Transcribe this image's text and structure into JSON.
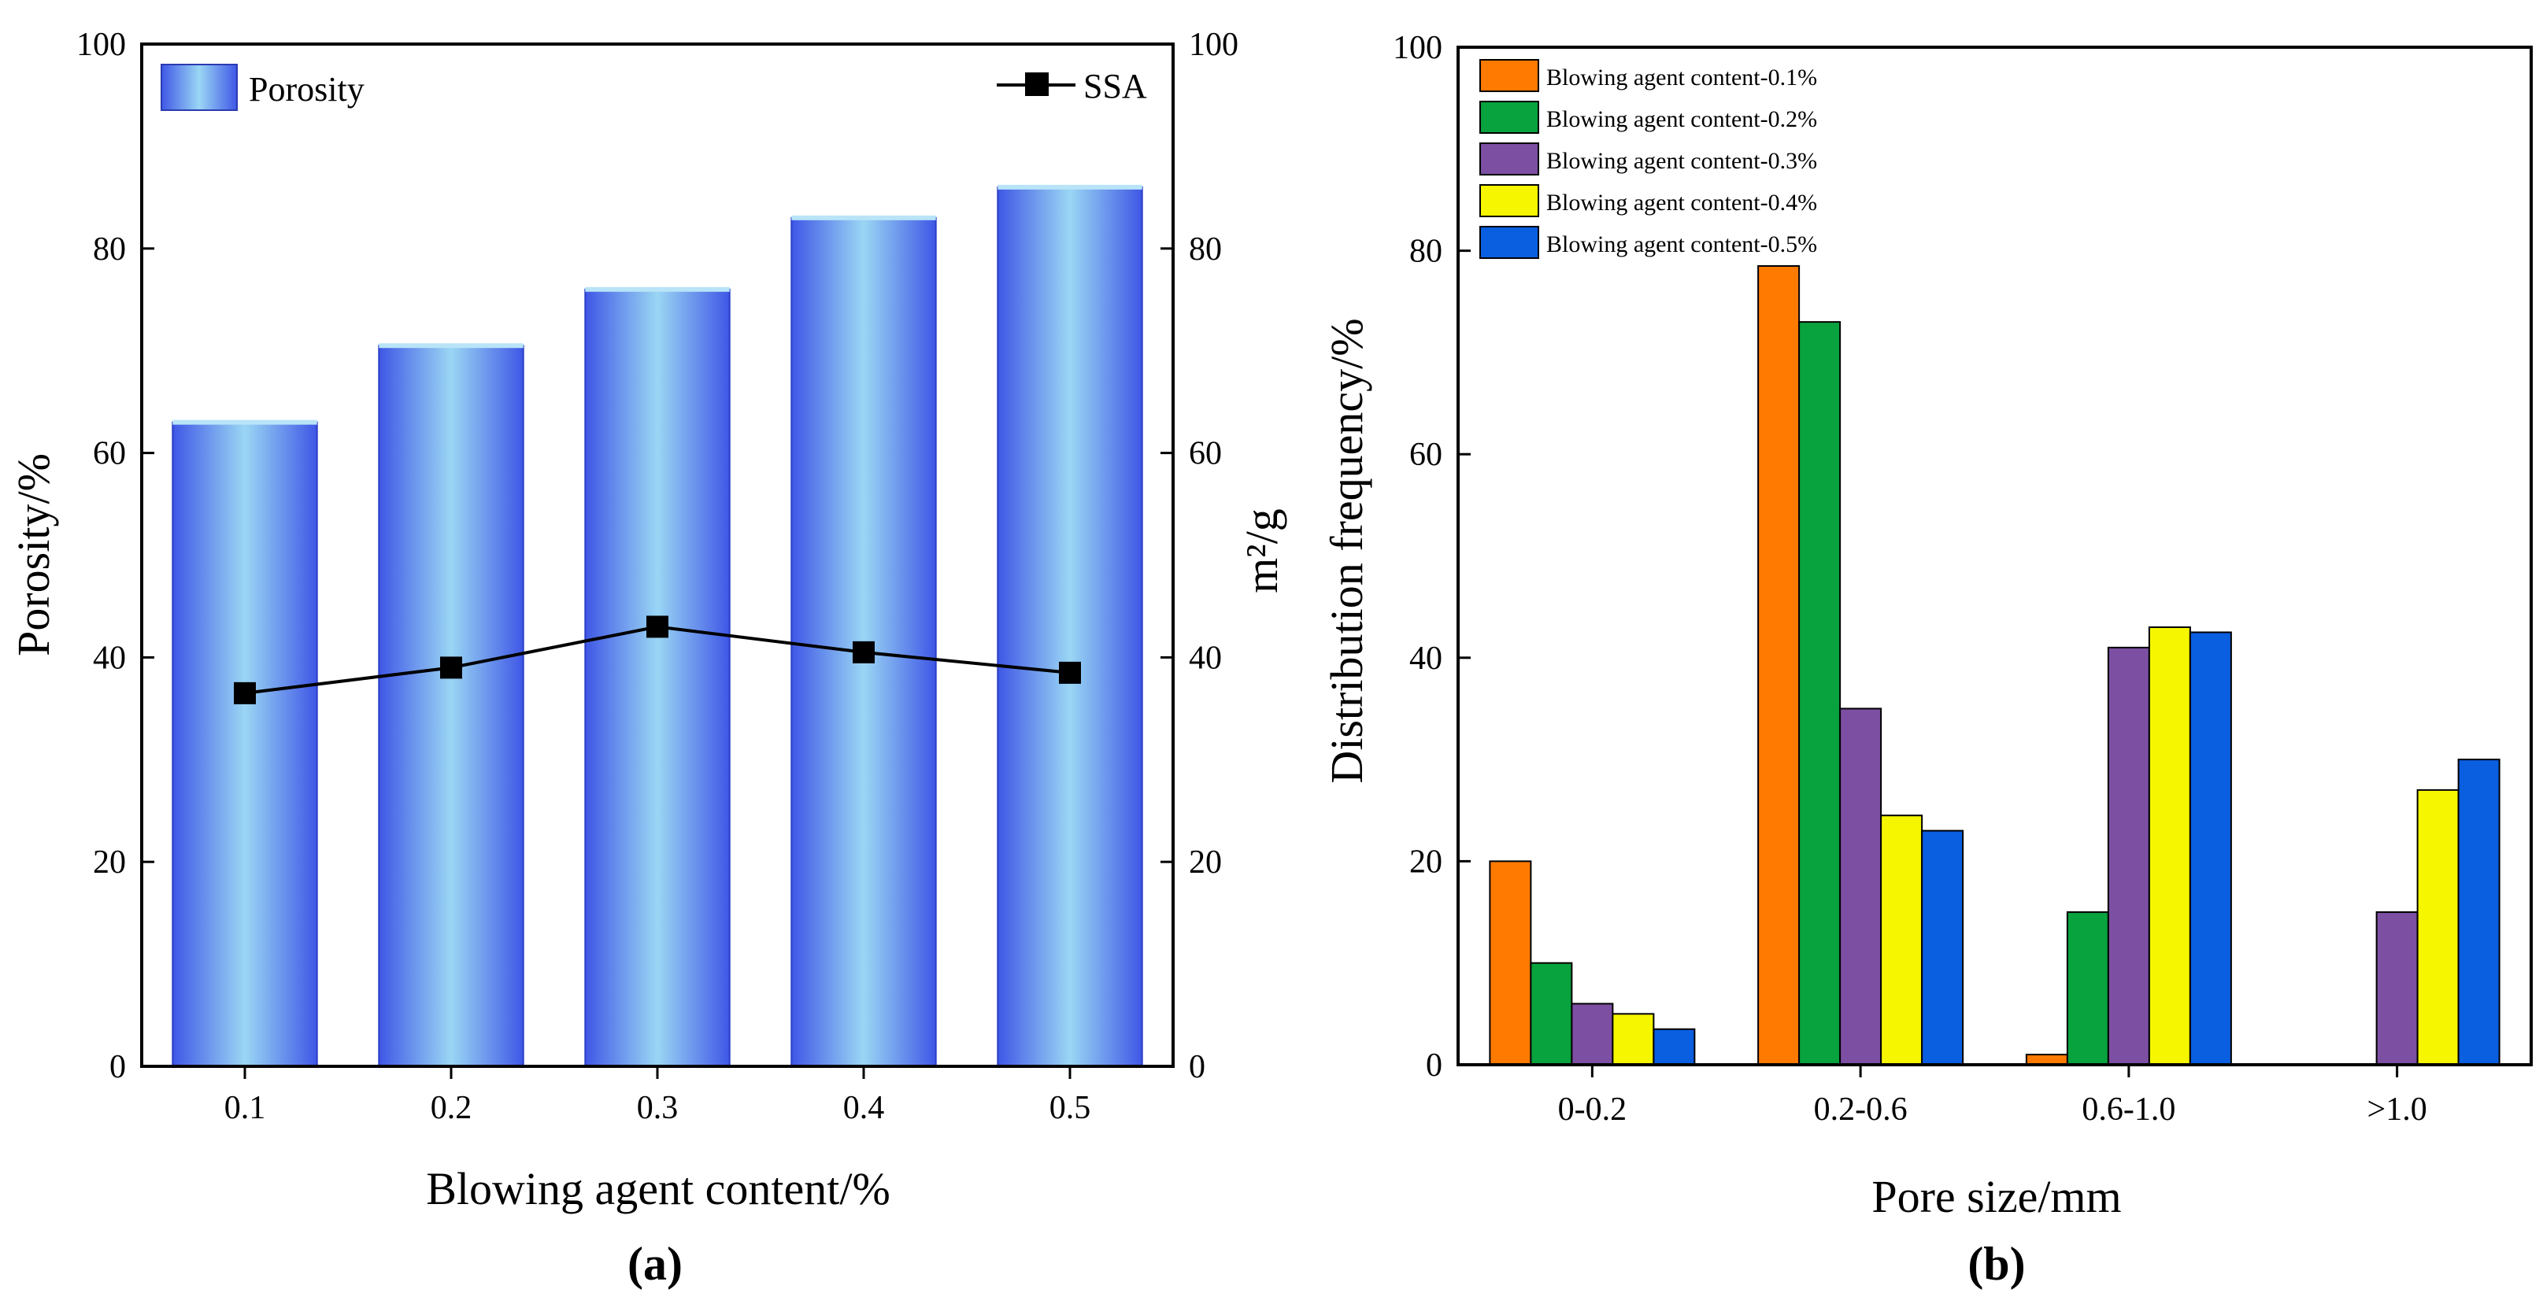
{
  "colors": {
    "bar_a_edge": "#3f57e6",
    "bar_a_center": "#9ad6f4",
    "ssa_line": "#000000",
    "b_series": [
      "#ff7a00",
      "#08a23e",
      "#7c4fa3",
      "#f6f600",
      "#0a5ee0"
    ]
  },
  "chart_data": [
    {
      "type": "bar",
      "panel_label": "(a)",
      "title": "",
      "xlabel": "Blowing agent content/%",
      "ylabel": "Porosity/%",
      "y2label": "m²/g",
      "categories": [
        "0.1",
        "0.2",
        "0.3",
        "0.4",
        "0.5"
      ],
      "ylim": [
        0,
        100
      ],
      "y2lim": [
        0,
        100
      ],
      "yticks": [
        "0",
        "20",
        "40",
        "60",
        "80",
        "100"
      ],
      "y2ticks": [
        "0",
        "20",
        "40",
        "60",
        "80",
        "100"
      ],
      "grid": false,
      "legend_placement": "top",
      "series": [
        {
          "name": "Porosity",
          "type": "bar",
          "axis": "left",
          "values": [
            63,
            70.5,
            76,
            83,
            86
          ]
        },
        {
          "name": "SSA",
          "type": "line",
          "marker": "square",
          "axis": "right",
          "values": [
            36.5,
            39,
            43,
            40.5,
            38.5
          ]
        }
      ]
    },
    {
      "type": "bar",
      "panel_label": "(b)",
      "title": "",
      "xlabel": "Pore size/mm",
      "ylabel": "Distribution frequency/%",
      "categories": [
        "0-0.2",
        "0.2-0.6",
        "0.6-1.0",
        ">1.0"
      ],
      "ylim": [
        0,
        100
      ],
      "yticks": [
        "0",
        "20",
        "40",
        "60",
        "80",
        "100"
      ],
      "grid": false,
      "legend_placement": "top-left",
      "series": [
        {
          "name": "Blowing agent content-0.1%",
          "values": [
            20,
            78.5,
            1,
            0
          ]
        },
        {
          "name": "Blowing agent content-0.2%",
          "values": [
            10,
            73,
            15,
            0
          ]
        },
        {
          "name": "Blowing agent content-0.3%",
          "values": [
            6,
            35,
            41,
            15
          ]
        },
        {
          "name": "Blowing agent content-0.4%",
          "values": [
            5,
            24.5,
            43,
            27
          ]
        },
        {
          "name": "Blowing agent content-0.5%",
          "values": [
            3.5,
            23,
            42.5,
            30
          ]
        }
      ]
    }
  ]
}
